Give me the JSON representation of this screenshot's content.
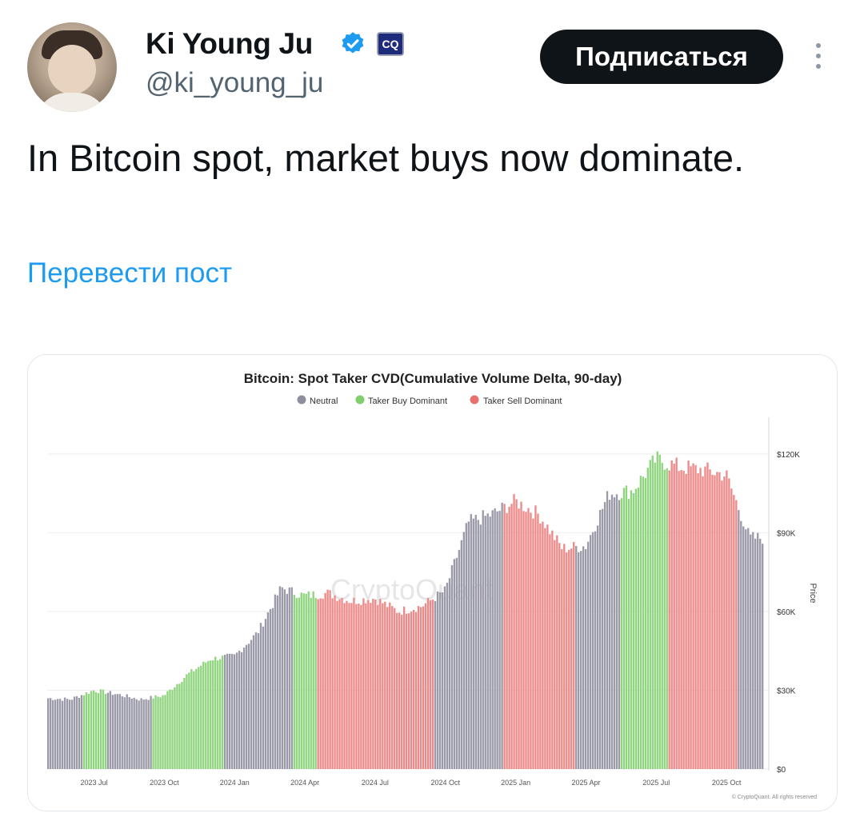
{
  "tweet": {
    "display_name": "Ki Young Ju",
    "handle": "@ki_young_ju",
    "follow_label": "Подписаться",
    "org_badge": "CQ",
    "text": "In Bitcoin spot, market buys now dominate.",
    "translate_label": "Перевести пост"
  },
  "colors": {
    "neutral": "#9b9aa8",
    "buy": "#8fd47e",
    "sell": "#ec8a89",
    "link": "#1d9bf0",
    "verified": "#1d9bf0"
  },
  "chart_data": {
    "type": "bar",
    "title": "Bitcoin: Spot Taker CVD(Cumulative Volume Delta, 90-day)",
    "legend": [
      "Neutral",
      "Taker Buy Dominant",
      "Taker Sell Dominant"
    ],
    "legend_position": "top-center",
    "ylabel": "Price",
    "ylim": [
      0,
      130000
    ],
    "y_ticks": [
      "$0",
      "$30K",
      "$60K",
      "$90K",
      "$120K"
    ],
    "x_ticks": [
      "2023 Jul",
      "2023 Oct",
      "2024 Jan",
      "2024 Apr",
      "2024 Jul",
      "2024 Oct",
      "2025 Jan",
      "2025 Apr",
      "2025 Jul",
      "2025 Oct"
    ],
    "watermark": "CryptoQuant",
    "footer": "© CryptoQuant. All rights reserved",
    "x_start": "2023-05",
    "x_end": "2025-11",
    "series_points": [
      [
        "2023-05",
        27000
      ],
      [
        "2023-06",
        26500
      ],
      [
        "2023-07",
        30000
      ],
      [
        "2023-08",
        28500
      ],
      [
        "2023-09",
        26500
      ],
      [
        "2023-10",
        28000
      ],
      [
        "2023-11",
        36000
      ],
      [
        "2023-12",
        42000
      ],
      [
        "2024-01",
        43000
      ],
      [
        "2024-02",
        52000
      ],
      [
        "2024-03",
        69000
      ],
      [
        "2024-04",
        66000
      ],
      [
        "2024-05",
        67000
      ],
      [
        "2024-06",
        64000
      ],
      [
        "2024-07",
        65000
      ],
      [
        "2024-08",
        60000
      ],
      [
        "2024-09",
        62000
      ],
      [
        "2024-10",
        68000
      ],
      [
        "2024-11",
        94000
      ],
      [
        "2024-12",
        97000
      ],
      [
        "2025-01",
        102000
      ],
      [
        "2025-02",
        97000
      ],
      [
        "2025-03",
        84000
      ],
      [
        "2025-04",
        85000
      ],
      [
        "2025-05",
        105000
      ],
      [
        "2025-06",
        106000
      ],
      [
        "2025-07",
        118000
      ],
      [
        "2025-08",
        115000
      ],
      [
        "2025-09",
        114000
      ],
      [
        "2025-10",
        112000
      ],
      [
        "2025-11",
        88000
      ]
    ],
    "regimes": [
      {
        "from": "2023-05",
        "to": "2023-06",
        "state": "Neutral"
      },
      {
        "from": "2023-06",
        "to": "2023-07",
        "state": "Taker Buy Dominant"
      },
      {
        "from": "2023-07",
        "to": "2023-09",
        "state": "Neutral"
      },
      {
        "from": "2023-09",
        "to": "2023-10",
        "state": "Taker Buy Dominant"
      },
      {
        "from": "2023-10",
        "to": "2023-10",
        "state": "Neutral"
      },
      {
        "from": "2023-10",
        "to": "2023-12",
        "state": "Taker Buy Dominant"
      },
      {
        "from": "2023-12",
        "to": "2024-03",
        "state": "Neutral"
      },
      {
        "from": "2024-03",
        "to": "2024-04",
        "state": "Taker Buy Dominant"
      },
      {
        "from": "2024-04",
        "to": "2024-09",
        "state": "Taker Sell Dominant"
      },
      {
        "from": "2024-09",
        "to": "2024-12",
        "state": "Neutral"
      },
      {
        "from": "2024-12",
        "to": "2025-03",
        "state": "Taker Sell Dominant"
      },
      {
        "from": "2025-03",
        "to": "2025-05",
        "state": "Neutral"
      },
      {
        "from": "2025-05",
        "to": "2025-07",
        "state": "Taker Buy Dominant"
      },
      {
        "from": "2025-07",
        "to": "2025-10",
        "state": "Taker Sell Dominant"
      },
      {
        "from": "2025-10",
        "to": "2025-11",
        "state": "Neutral"
      }
    ]
  }
}
